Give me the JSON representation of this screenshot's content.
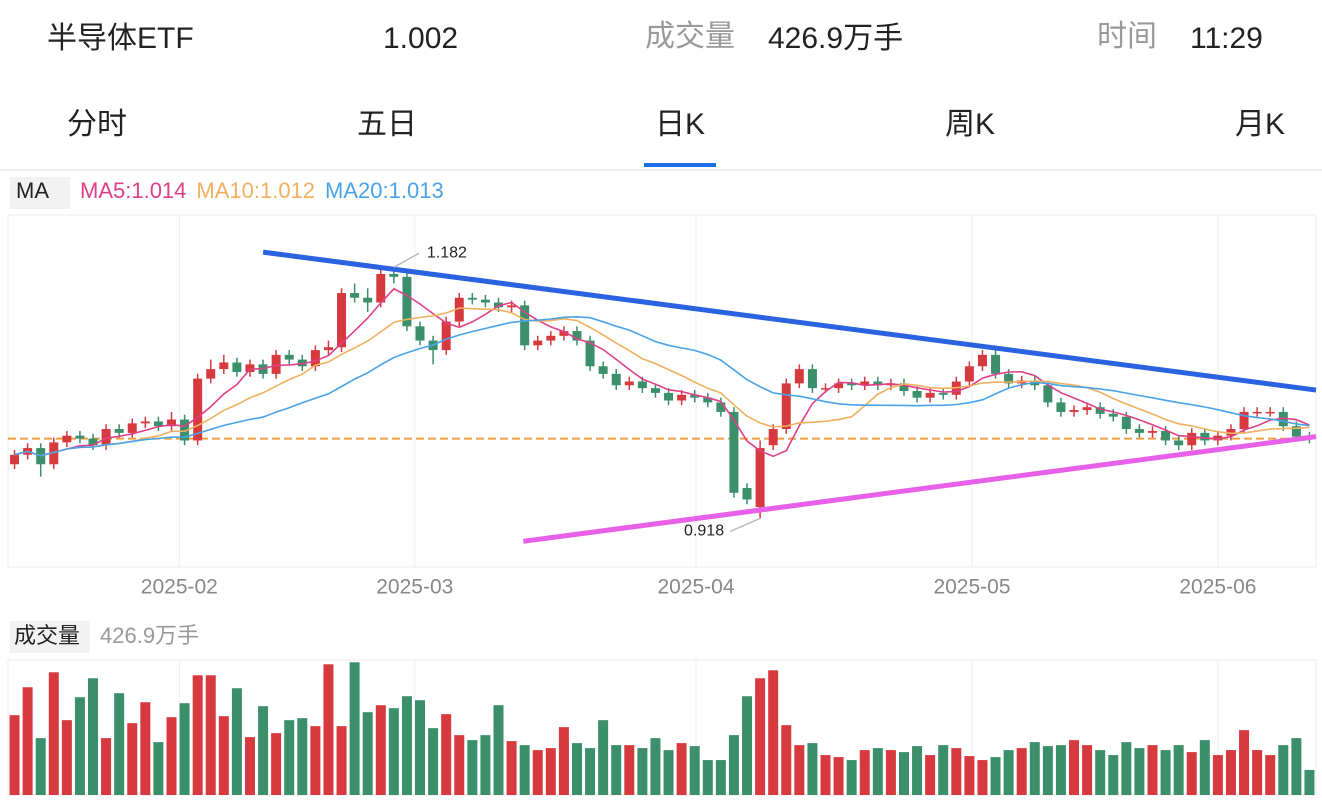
{
  "header": {
    "name": "半导体ETF",
    "price": 1.002,
    "volume_label": "成交量",
    "volume": "426.9万手",
    "time_label": "时间",
    "time": "11:29",
    "price_color": "#3a9a6c"
  },
  "tabs": [
    "分时",
    "五日",
    "日K",
    "周K",
    "月K"
  ],
  "active_tab": "日K",
  "chart_data": [
    {
      "type": "candlestick",
      "legend_title": "MA",
      "ma": [
        {
          "name": "MA5:1.014",
          "color": "#e0408a"
        },
        {
          "name": "MA10:1.012",
          "color": "#f0b060"
        },
        {
          "name": "MA20:1.013",
          "color": "#4aa3e8"
        }
      ],
      "up_color": "#d63a3f",
      "down_color": "#3b8f6a",
      "xlim": [
        -0.5,
        99.5
      ],
      "xticks": [
        {
          "value": 12.6,
          "label": "2025-02"
        },
        {
          "value": 30.6,
          "label": "2025-03"
        },
        {
          "value": 52.1,
          "label": "2025-04"
        },
        {
          "value": 73.2,
          "label": "2025-05"
        },
        {
          "value": 92.0,
          "label": "2025-06"
        }
      ],
      "ylim": [
        0.867,
        1.237
      ],
      "open": [
        0.975,
        0.985,
        0.992,
        0.975,
        0.998,
        1.005,
        1.002,
        0.995,
        1.012,
        1.008,
        1.018,
        1.02,
        1.015,
        1.022,
        1.0,
        1.065,
        1.075,
        1.082,
        1.072,
        1.08,
        1.07,
        1.09,
        1.085,
        1.078,
        1.095,
        1.098,
        1.155,
        1.15,
        1.145,
        1.175,
        1.172,
        1.12,
        1.105,
        1.095,
        1.125,
        1.15,
        1.148,
        1.145,
        1.14,
        1.142,
        1.1,
        1.105,
        1.11,
        1.115,
        1.105,
        1.078,
        1.07,
        1.058,
        1.062,
        1.055,
        1.05,
        1.042,
        1.048,
        1.045,
        1.04,
        1.03,
        0.95,
        0.93,
        0.995,
        1.012,
        1.06,
        1.075,
        1.055,
        1.055,
        1.06,
        1.058,
        1.062,
        1.058,
        1.06,
        1.052,
        1.045,
        1.05,
        1.048,
        1.062,
        1.078,
        1.09,
        1.07,
        1.06,
        1.063,
        1.058,
        1.04,
        1.03,
        1.032,
        1.035,
        1.028,
        1.025,
        1.012,
        1.008,
        1.01,
        1.0,
        0.995,
        1.008,
        1.0,
        1.005,
        1.012,
        1.03,
        1.03,
        1.03,
        1.015,
        1.004
      ],
      "high": [
        0.99,
        0.997,
        0.997,
        1.003,
        1.01,
        1.01,
        1.007,
        1.017,
        1.017,
        1.023,
        1.025,
        1.025,
        1.03,
        1.027,
        1.07,
        1.085,
        1.09,
        1.087,
        1.085,
        1.085,
        1.095,
        1.095,
        1.09,
        1.1,
        1.105,
        1.16,
        1.165,
        1.16,
        1.18,
        1.182,
        1.177,
        1.125,
        1.11,
        1.13,
        1.155,
        1.155,
        1.153,
        1.15,
        1.147,
        1.147,
        1.11,
        1.115,
        1.12,
        1.12,
        1.11,
        1.083,
        1.075,
        1.067,
        1.067,
        1.06,
        1.055,
        1.053,
        1.053,
        1.05,
        1.045,
        1.035,
        0.955,
        1.0,
        1.017,
        1.065,
        1.08,
        1.08,
        1.06,
        1.065,
        1.065,
        1.067,
        1.067,
        1.065,
        1.065,
        1.057,
        1.055,
        1.055,
        1.067,
        1.083,
        1.095,
        1.095,
        1.075,
        1.068,
        1.068,
        1.063,
        1.045,
        1.037,
        1.04,
        1.04,
        1.033,
        1.03,
        1.017,
        1.015,
        1.015,
        1.005,
        1.013,
        1.013,
        1.01,
        1.017,
        1.035,
        1.035,
        1.035,
        1.035,
        1.02,
        1.009
      ],
      "low": [
        0.97,
        0.98,
        0.962,
        0.97,
        0.993,
        0.997,
        0.99,
        0.99,
        1.003,
        1.003,
        1.013,
        1.01,
        1.01,
        0.995,
        0.995,
        1.06,
        1.07,
        1.067,
        1.067,
        1.065,
        1.065,
        1.08,
        1.073,
        1.073,
        1.09,
        1.093,
        1.145,
        1.135,
        1.14,
        1.165,
        1.115,
        1.1,
        1.08,
        1.09,
        1.12,
        1.143,
        1.14,
        1.135,
        1.135,
        1.095,
        1.095,
        1.1,
        1.105,
        1.1,
        1.073,
        1.065,
        1.053,
        1.053,
        1.05,
        1.045,
        1.037,
        1.037,
        1.04,
        1.035,
        1.025,
        0.94,
        0.933,
        0.918,
        0.99,
        1.007,
        1.055,
        1.05,
        1.05,
        1.05,
        1.053,
        1.053,
        1.053,
        1.053,
        1.047,
        1.04,
        1.04,
        1.043,
        1.043,
        1.057,
        1.073,
        1.065,
        1.055,
        1.055,
        1.053,
        1.035,
        1.025,
        1.025,
        1.027,
        1.023,
        1.02,
        1.007,
        1.003,
        1.003,
        0.995,
        0.99,
        0.99,
        0.995,
        0.995,
        1.0,
        1.007,
        1.025,
        1.025,
        1.01,
        0.999,
        0.997
      ],
      "close": [
        0.985,
        0.992,
        0.975,
        0.998,
        1.005,
        1.002,
        0.995,
        1.012,
        1.008,
        1.018,
        1.02,
        1.015,
        1.022,
        1.0,
        1.065,
        1.075,
        1.082,
        1.072,
        1.08,
        1.07,
        1.09,
        1.085,
        1.078,
        1.095,
        1.098,
        1.155,
        1.15,
        1.145,
        1.175,
        1.172,
        1.12,
        1.105,
        1.095,
        1.125,
        1.15,
        1.148,
        1.145,
        1.14,
        1.142,
        1.1,
        1.105,
        1.11,
        1.115,
        1.105,
        1.078,
        1.07,
        1.058,
        1.062,
        1.055,
        1.05,
        1.042,
        1.048,
        1.045,
        1.04,
        1.03,
        0.945,
        0.938,
        0.992,
        1.012,
        1.06,
        1.075,
        1.055,
        1.055,
        1.06,
        1.058,
        1.062,
        1.058,
        1.06,
        1.052,
        1.045,
        1.05,
        1.048,
        1.062,
        1.078,
        1.09,
        1.07,
        1.06,
        1.063,
        1.058,
        1.04,
        1.03,
        1.032,
        1.035,
        1.028,
        1.025,
        1.012,
        1.008,
        1.01,
        1.0,
        0.995,
        1.008,
        1.0,
        1.005,
        1.012,
        1.03,
        1.03,
        1.03,
        1.015,
        1.004,
        1.002
      ],
      "annotations": [
        {
          "text": 1.182,
          "x": 29
        },
        {
          "text": 0.918,
          "x": 57
        }
      ],
      "reference_line": {
        "value": 1.002,
        "color": "#f0a040"
      },
      "trend_lines": [
        {
          "color": "#2a62e0",
          "x": [
            19.0,
            99.5
          ],
          "y": [
            1.198,
            1.053
          ]
        },
        {
          "color": "#e860e8",
          "x": [
            38.9,
            99.5
          ],
          "y": [
            0.894,
            1.004
          ]
        }
      ]
    },
    {
      "type": "bar",
      "title": "成交量",
      "subtitle": "426.9万手",
      "xlim": [
        -0.5,
        99.5
      ],
      "ylim": [
        0,
        2300
      ],
      "values": [
        1360,
        1836,
        969,
        2091,
        1275,
        1666,
        1989,
        969,
        1734,
        1224,
        1581,
        901,
        1326,
        1564,
        2040,
        2040,
        1343,
        1819,
        986,
        1513,
        1054,
        1275,
        1309,
        1173,
        2227,
        1173,
        2261,
        1411,
        1530,
        1479,
        1683,
        1615,
        1139,
        1377,
        1020,
        935,
        1020,
        1530,
        918,
        850,
        765,
        799,
        1156,
        884,
        799,
        1275,
        850,
        850,
        799,
        969,
        765,
        884,
        833,
        595,
        595,
        1020,
        1683,
        1989,
        2125,
        1190,
        850,
        884,
        680,
        646,
        595,
        765,
        799,
        765,
        731,
        833,
        680,
        850,
        799,
        663,
        595,
        646,
        765,
        799,
        901,
        833,
        850,
        935,
        850,
        765,
        680,
        901,
        799,
        850,
        765,
        850,
        731,
        935,
        680,
        765,
        1105,
        765,
        680,
        850,
        969,
        426.9
      ]
    }
  ]
}
